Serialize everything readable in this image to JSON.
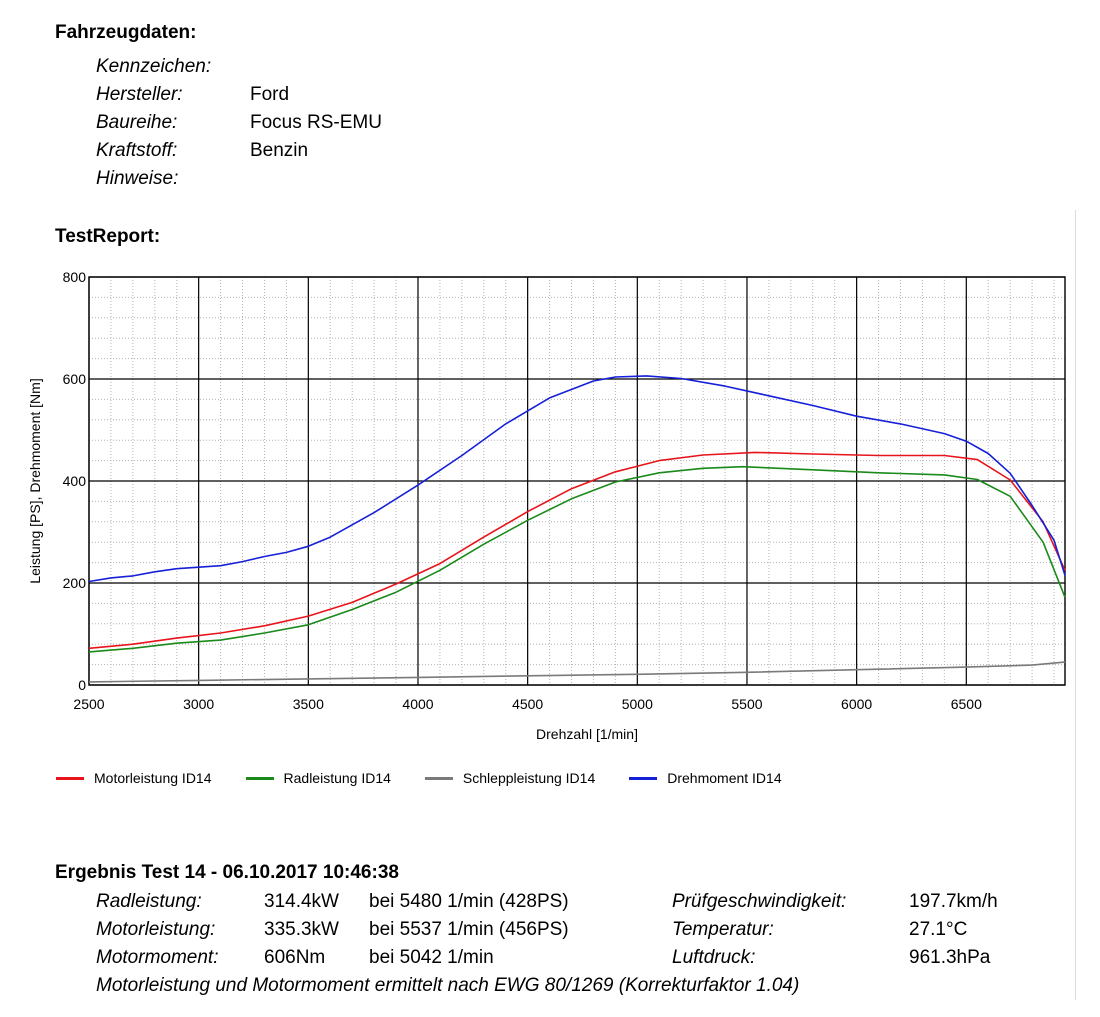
{
  "vehicle": {
    "heading": "Fahrzeugdaten:",
    "fields": [
      {
        "label": "Kennzeichen:",
        "value": ""
      },
      {
        "label": "Hersteller:",
        "value": "Ford"
      },
      {
        "label": "Baureihe:",
        "value": "Focus RS-EMU"
      },
      {
        "label": "Kraftstoff:",
        "value": "Benzin"
      },
      {
        "label": "Hinweise:",
        "value": ""
      }
    ]
  },
  "report": {
    "heading": "TestReport:"
  },
  "chart_data": {
    "type": "line",
    "xlabel": "Drehzahl [1/min]",
    "ylabel": "Leistung [PS], Drehmoment [Nm]",
    "xlim": [
      2500,
      6950
    ],
    "ylim": [
      0,
      800
    ],
    "xticks": [
      2500,
      3000,
      3500,
      4000,
      4500,
      5000,
      5500,
      6000,
      6500
    ],
    "yticks": [
      0,
      200,
      400,
      600,
      800
    ],
    "grid": true,
    "legend_position": "bottom",
    "series": [
      {
        "name": "Motorleistung ID14",
        "color": "#e8141b",
        "x": [
          2500,
          2700,
          2900,
          3100,
          3300,
          3500,
          3700,
          3900,
          4100,
          4300,
          4500,
          4700,
          4900,
          5100,
          5300,
          5537,
          5800,
          6100,
          6400,
          6550,
          6700,
          6850,
          6950
        ],
        "y": [
          72,
          80,
          92,
          102,
          116,
          135,
          162,
          198,
          238,
          290,
          340,
          385,
          418,
          440,
          451,
          456,
          453,
          450,
          450,
          442,
          402,
          320,
          225
        ]
      },
      {
        "name": "Radleistung ID14",
        "color": "#1a8a1a",
        "x": [
          2500,
          2700,
          2900,
          3100,
          3300,
          3500,
          3700,
          3900,
          4100,
          4300,
          4500,
          4700,
          4900,
          5100,
          5300,
          5480,
          5800,
          6100,
          6400,
          6550,
          6700,
          6850,
          6950
        ],
        "y": [
          65,
          72,
          82,
          88,
          102,
          118,
          148,
          182,
          225,
          276,
          323,
          365,
          398,
          416,
          425,
          428,
          422,
          416,
          412,
          403,
          370,
          280,
          172
        ]
      },
      {
        "name": "Schleppleistung ID14",
        "color": "#7a7a7a",
        "x": [
          2500,
          3000,
          3500,
          4000,
          4500,
          5000,
          5500,
          6000,
          6500,
          6800,
          6950
        ],
        "y": [
          6,
          9,
          12,
          15,
          18,
          21,
          25,
          30,
          35,
          39,
          45
        ]
      },
      {
        "name": "Drehmoment ID14",
        "color": "#1620d8",
        "x": [
          2500,
          2600,
          2700,
          2800,
          2900,
          3000,
          3100,
          3200,
          3300,
          3400,
          3500,
          3600,
          3800,
          4000,
          4200,
          4400,
          4600,
          4800,
          4900,
          5042,
          5200,
          5400,
          5600,
          5800,
          6000,
          6200,
          6400,
          6500,
          6600,
          6700,
          6800,
          6900,
          6950
        ],
        "y": [
          203,
          210,
          214,
          222,
          228,
          231,
          234,
          242,
          252,
          260,
          272,
          290,
          338,
          392,
          450,
          512,
          563,
          596,
          604,
          606,
          601,
          586,
          567,
          548,
          527,
          512,
          493,
          478,
          454,
          415,
          352,
          284,
          215
        ]
      }
    ]
  },
  "results": {
    "heading": "Ergebnis Test 14 - 06.10.2017 10:46:38",
    "rows": [
      {
        "label": "Radleistung:",
        "value": "314.4kW",
        "detail": "bei 5480 1/min (428PS)",
        "label2": "Prüfgeschwindigkeit:",
        "value2": "197.7km/h"
      },
      {
        "label": "Motorleistung:",
        "value": "335.3kW",
        "detail": "bei 5537 1/min (456PS)",
        "label2": "Temperatur:",
        "value2": "27.1°C"
      },
      {
        "label": "Motormoment:",
        "value": "606Nm",
        "detail": "bei 5042 1/min",
        "label2": "Luftdruck:",
        "value2": "961.3hPa"
      }
    ],
    "note": "Motorleistung und Motormoment ermittelt nach EWG 80/1269 (Korrekturfaktor 1.04)"
  }
}
